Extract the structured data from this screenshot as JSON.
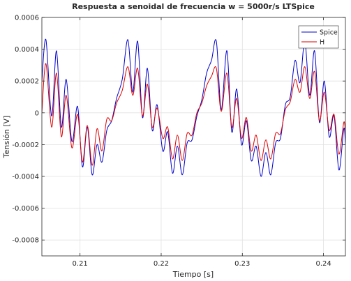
{
  "chart_data": {
    "type": "line",
    "title": "Respuesta a senoidal de frecuencia w = 5000r/s LTSpice",
    "xlabel": "Tiempo [s]",
    "ylabel": "Tensión [V]",
    "xlim": [
      0.2053,
      0.2427
    ],
    "ylim": [
      -0.0009,
      0.0006
    ],
    "xticks": [
      0.21,
      0.22,
      0.23,
      0.24
    ],
    "xtick_labels": [
      "0.21",
      "0.22",
      "0.23",
      "0.24"
    ],
    "yticks": [
      -0.0008,
      -0.0006,
      -0.0004,
      -0.0002,
      0,
      0.0002,
      0.0004,
      0.0006
    ],
    "ytick_labels": [
      "-0.0008",
      "-0.0006",
      "-0.0004",
      "-0.0002",
      "0",
      "0.0002",
      "0.0004",
      "0.0006"
    ],
    "grid": true,
    "legend_position": "top-right",
    "series": [
      {
        "name": "Spice",
        "color": "#0000cc",
        "x": [
          0.2053,
          0.2058,
          0.2065,
          0.2071,
          0.2077,
          0.2083,
          0.209,
          0.2097,
          0.2103,
          0.2109,
          0.2115,
          0.2121,
          0.2127,
          0.2133,
          0.2139,
          0.2145,
          0.2152,
          0.2159,
          0.2165,
          0.2171,
          0.2177,
          0.2183,
          0.2189,
          0.2195,
          0.2202,
          0.2208,
          0.2214,
          0.222,
          0.2226,
          0.2232,
          0.2238,
          0.2244,
          0.225,
          0.2256,
          0.2262,
          0.2268,
          0.2274,
          0.2281,
          0.2287,
          0.2293,
          0.2299,
          0.2305,
          0.2311,
          0.2317,
          0.2323,
          0.2329,
          0.2335,
          0.2341,
          0.2347,
          0.2353,
          0.2359,
          0.2365,
          0.2371,
          0.2377,
          0.2383,
          0.2389,
          0.2395,
          0.2401,
          0.2407,
          0.2413,
          0.2419,
          0.2425,
          0.2427
        ],
        "y": [
          0.0002,
          0.00046,
          -2e-05,
          0.00039,
          -9e-05,
          0.00021,
          -0.00018,
          4e-05,
          -0.00034,
          -9e-05,
          -0.00039,
          -0.0002,
          -0.00031,
          -0.00011,
          -5e-05,
          9e-05,
          0.00021,
          0.00046,
          0.00013,
          0.00045,
          -3e-05,
          0.00028,
          -0.00011,
          5e-05,
          -0.00024,
          -0.00012,
          -0.00038,
          -0.00021,
          -0.00039,
          -0.00019,
          -0.00017,
          -2e-05,
          8e-05,
          0.00025,
          0.00033,
          0.00045,
          2e-05,
          0.00039,
          -0.00012,
          0.00015,
          -0.0002,
          -5e-05,
          -0.0003,
          -0.00021,
          -0.0004,
          -0.00025,
          -0.00039,
          -0.00019,
          -0.00016,
          5e-05,
          0.0001,
          0.00033,
          0.00019,
          0.00045,
          0.00011,
          0.00039,
          -6e-05,
          0.0002,
          -0.00015,
          -2e-05,
          -0.00036,
          -0.0001,
          -0.0002
        ]
      },
      {
        "name": "H",
        "color": "#dd0000",
        "x": [
          0.2053,
          0.2058,
          0.2065,
          0.2071,
          0.2077,
          0.2083,
          0.209,
          0.2097,
          0.2103,
          0.2109,
          0.2115,
          0.2121,
          0.2127,
          0.2133,
          0.2139,
          0.2145,
          0.2152,
          0.2159,
          0.2165,
          0.2171,
          0.2177,
          0.2183,
          0.2189,
          0.2195,
          0.2202,
          0.2208,
          0.2214,
          0.222,
          0.2226,
          0.2232,
          0.2238,
          0.2244,
          0.225,
          0.2256,
          0.2262,
          0.2268,
          0.2274,
          0.2281,
          0.2287,
          0.2293,
          0.2299,
          0.2305,
          0.2311,
          0.2317,
          0.2323,
          0.2329,
          0.2335,
          0.2341,
          0.2347,
          0.2353,
          0.2359,
          0.2365,
          0.2371,
          0.2377,
          0.2383,
          0.2389,
          0.2395,
          0.2401,
          0.2407,
          0.2413,
          0.2419,
          0.2425,
          0.2427
        ],
        "y": [
          0.0,
          0.00031,
          -9e-05,
          0.00025,
          -0.00015,
          0.00011,
          -0.00022,
          -1e-05,
          -0.00031,
          -8e-05,
          -0.00033,
          -0.0001,
          -0.00024,
          -4e-05,
          -5e-05,
          6e-05,
          0.00014,
          0.00029,
          0.00011,
          0.00028,
          -2e-05,
          0.00018,
          -9e-05,
          3e-05,
          -0.00016,
          -9e-05,
          -0.00029,
          -0.00014,
          -0.0003,
          -0.00013,
          -0.00014,
          0.0,
          6e-05,
          0.00017,
          0.00023,
          0.00028,
          1e-05,
          0.00025,
          -9e-05,
          9e-05,
          -0.00016,
          -3e-05,
          -0.00024,
          -0.00014,
          -0.0003,
          -0.00017,
          -0.00029,
          -0.00013,
          -0.00013,
          2e-05,
          7e-05,
          0.00021,
          0.00013,
          0.00029,
          9e-05,
          0.00026,
          -5e-05,
          0.00013,
          -0.00011,
          -1e-05,
          -0.00026,
          -6e-05,
          -0.00013
        ]
      }
    ]
  }
}
